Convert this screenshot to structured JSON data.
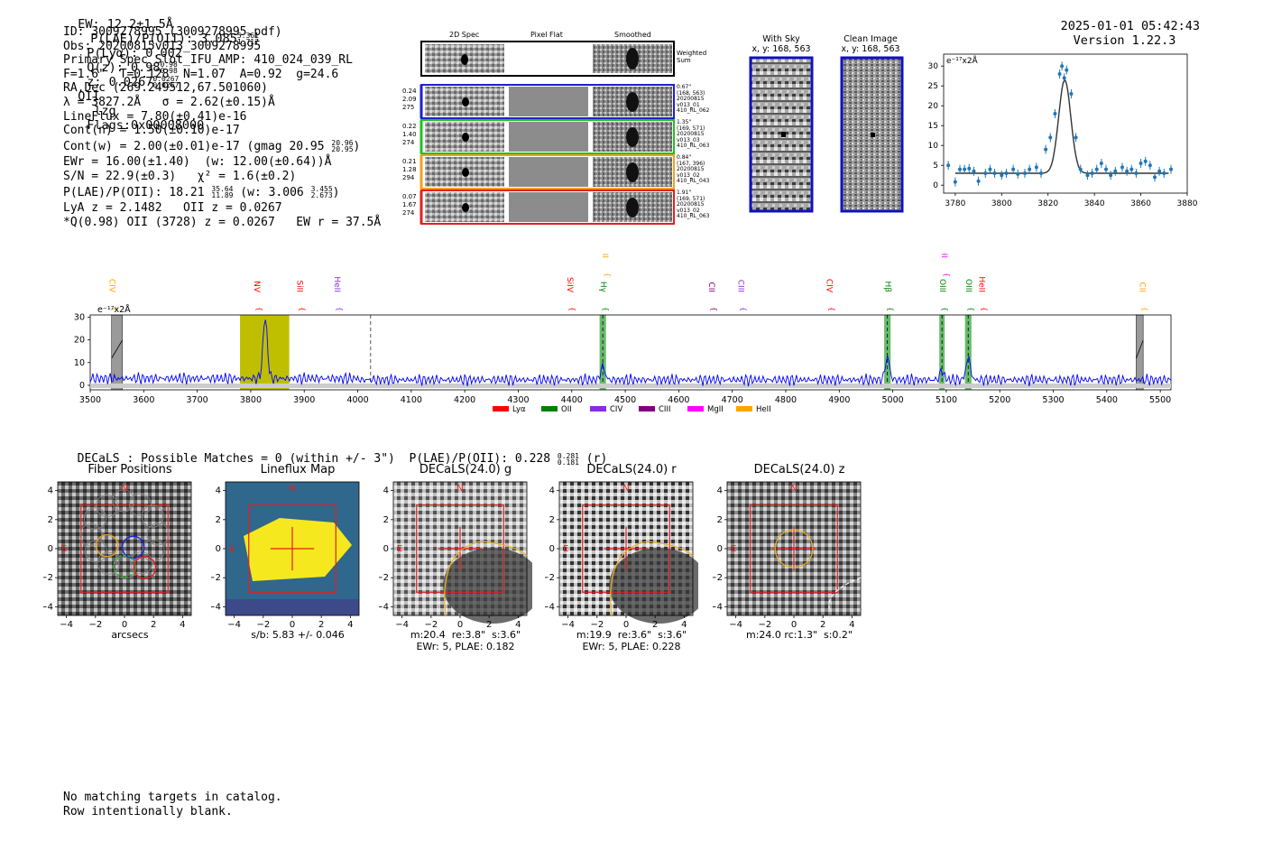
{
  "header": {
    "ew": "EW: 12.2±1.5Å",
    "plae_label": "P(LAE)/P(OII): 3.085",
    "plae_hi": "5.361",
    "plae_lo": "1.717",
    "plya": "P(Lyα): 0.002",
    "qz_label": "Q(z): 0.98",
    "qz_hi": "0.98",
    "qz_lo": "0.98",
    "z_label": "z: 0.0267",
    "z_hi": "0.0267",
    "z_lo": "0.0267",
    "z_tail": "OII",
    "lzg": "lzg",
    "flags": "Flags:0x00008000",
    "timestamp": "2025-01-01 05:42:43",
    "version": "Version 1.22.3"
  },
  "info": {
    "id": "ID: 3009278995 (3009278995.pdf)",
    "obs": "Obs: 20200815v013_3009278995",
    "primary": "Primary Spec_Slot_IFU_AMP: 410_024_039_RL",
    "f": "F=1.6\"  T=0.128  N=1.07  A=0.92  g=24.6",
    "radec": "RA,Dec (269.249512,67.501060)",
    "lambda": "λ = 3827.2Å   σ = 2.62(±0.15)Å",
    "lineflux": "LineFlux = 7.80(±0.41)e-16",
    "contn": "Cont(n) = 1.50(±0.10)e-17",
    "contw": "Cont(w) = 2.00(±0.01)e-17 (gmag 20.95",
    "contw_hi": "20.96",
    "contw_lo": "20.95",
    "contw_tail": ")",
    "ewr": "EWr = 16.00(±1.40)  (w: 12.00(±0.64))Å",
    "sn": "S/N = 22.9(±0.3)   χ² = 1.6(±0.2)",
    "plae": "P(LAE)/P(OII): 18.21",
    "plae_hi": "35.64",
    "plae_lo": "11.89",
    "plae_w": " (w: 3.006",
    "plae_w_hi": "3.455",
    "plae_w_lo": "2.673",
    "plae_tail": ")",
    "lya": "LyA z = 2.1482   OII z = 0.0267",
    "q": "*Q(0.98) OII (3728) z = 0.0267   EW r = 37.5Å"
  },
  "cutouts": {
    "col_2d": "2D Spec",
    "col_flat": "Pixel Flat",
    "col_smooth": "Smoothed",
    "weighted": "Weighted\nSum",
    "rows": [
      {
        "left": "0.24\n2.09\n275",
        "right": "0.67\"\n(168, 563)\n20200815\nv013_01\n410_RL_062",
        "color": "#1f1fd0"
      },
      {
        "left": "0.22\n1.40\n274",
        "right": "1.35\"\n(169, 571)\n20200815\nv013_03\n410_RL_063",
        "color": "#22c022"
      },
      {
        "left": "0.21\n1.28\n294",
        "right": "0.84\"\n(167, 396)\n20200815\nv013_02\n410_RL_043",
        "color": "#f0a020"
      },
      {
        "left": "0.07\n1.67\n274",
        "right": "1.91\"\n(169, 571)\n20200815\nv013_02\n410_RL_063",
        "color": "#e02020"
      }
    ]
  },
  "sky": {
    "with_title": "With Sky",
    "with_xy": "x, y: 168, 563",
    "clean_title": "Clean Image",
    "clean_xy": "x, y: 168, 563"
  },
  "zoom_chart": {
    "units": "e⁻¹⁷x2Å",
    "xticks": [
      "3780",
      "3800",
      "3820",
      "3840",
      "3860",
      "3880"
    ],
    "yticks": [
      "0",
      "5",
      "10",
      "15",
      "20",
      "25",
      "30"
    ]
  },
  "full_spectrum": {
    "units": "e⁻¹⁷x2Å",
    "xticks": [
      "3500",
      "3600",
      "3700",
      "3800",
      "3900",
      "4000",
      "4100",
      "4200",
      "4300",
      "4400",
      "4500",
      "4600",
      "4700",
      "4800",
      "4900",
      "5000",
      "5100",
      "5200",
      "5300",
      "5400",
      "5500"
    ],
    "yticks": [
      "0",
      "10",
      "20",
      "30"
    ],
    "legend": [
      {
        "label": "Lyα",
        "color": "#ff0000"
      },
      {
        "label": "OII",
        "color": "#008000"
      },
      {
        "label": "CIV",
        "color": "#8a2be2"
      },
      {
        "label": "CIII",
        "color": "#800080"
      },
      {
        "label": "MgII",
        "color": "#ff00ff"
      },
      {
        "label": "HeII",
        "color": "#ffa500"
      }
    ],
    "line_labels": [
      {
        "name": "CIV",
        "wave": 3540,
        "color": "#ffa500",
        "row": 1
      },
      {
        "name": "NV",
        "wave": 3810,
        "color": "#ff0000",
        "row": 1
      },
      {
        "name": "SiII",
        "wave": 3890,
        "color": "#ff0000",
        "row": 1
      },
      {
        "name": "HeII",
        "wave": 3960,
        "color": "#8a2be2",
        "row": 1
      },
      {
        "name": "SiIV",
        "wave": 4395,
        "color": "#ff0000",
        "row": 1
      },
      {
        "name": "CIII",
        "wave": 4458,
        "color": "#ffa500",
        "row": 0
      },
      {
        "name": "Hγ",
        "wave": 4458,
        "color": "#008000",
        "row": 1
      },
      {
        "name": "CII",
        "wave": 4660,
        "color": "#800080",
        "row": 1
      },
      {
        "name": "CIII",
        "wave": 4715,
        "color": "#8a2be2",
        "row": 1
      },
      {
        "name": "CIV",
        "wave": 4880,
        "color": "#ff0000",
        "row": 1
      },
      {
        "name": "Hβ",
        "wave": 4990,
        "color": "#008000",
        "row": 1
      },
      {
        "name": "OII",
        "wave": 5092,
        "color": "#ff00ff",
        "row": 0
      },
      {
        "name": "OIII",
        "wave": 5092,
        "color": "#008000",
        "row": 1
      },
      {
        "name": "OIII",
        "wave": 5141,
        "color": "#008000",
        "row": 1
      },
      {
        "name": "HeII",
        "wave": 5165,
        "color": "#ff0000",
        "row": 1
      },
      {
        "name": "CII",
        "wave": 5465,
        "color": "#ffa500",
        "row": 1
      }
    ]
  },
  "decals": {
    "summary": "DECaLS : Possible Matches = 0 (within +/- 3\")  P(LAE)/P(OII): 0.228",
    "summary_hi": "0.281",
    "summary_lo": "0.181",
    "summary_tail": " (r)",
    "north": "N",
    "east": "E",
    "ticks": [
      "−4",
      "−2",
      "0",
      "2",
      "4"
    ],
    "panels": [
      {
        "title": "Fiber Positions",
        "caption": "arcsecs"
      },
      {
        "title": "Lineflux Map",
        "caption": "s/b: 5.83 +/- 0.046"
      },
      {
        "title": "DECaLS(24.0) g",
        "caption": "m:20.4  re:3.8\"  s:3.6\"\nEWr: 5, PLAE: 0.182"
      },
      {
        "title": "DECaLS(24.0) r",
        "caption": "m:19.9  re:3.6\"  s:3.6\"\nEWr: 5, PLAE: 0.228"
      },
      {
        "title": "DECaLS(24.0) z",
        "caption": "m:24.0 rc:1.3\"  s:0.2\""
      }
    ]
  },
  "footer": {
    "line1": "No matching targets in catalog.",
    "line2": "Row intentionally blank."
  },
  "chart_data": [
    {
      "type": "scatter",
      "title": "",
      "units": "e⁻¹⁷x2Å",
      "xlim": [
        3775,
        3880
      ],
      "ylim": [
        -2,
        33
      ],
      "x": [
        3777,
        3780,
        3782,
        3784,
        3786,
        3788,
        3790,
        3793,
        3795,
        3797,
        3800,
        3802,
        3805,
        3807,
        3810,
        3812,
        3815,
        3817,
        3819,
        3821,
        3823,
        3825,
        3826,
        3827,
        3828,
        3830,
        3832,
        3834,
        3837,
        3839,
        3841,
        3843,
        3845,
        3847,
        3849,
        3852,
        3854,
        3856,
        3858,
        3860,
        3862,
        3864,
        3866,
        3868,
        3870,
        3873
      ],
      "y": [
        5.0,
        0.8,
        4.0,
        4.0,
        4.2,
        3.5,
        1.0,
        3.0,
        4.0,
        3.0,
        2.5,
        3.0,
        4.0,
        2.8,
        3.0,
        4.0,
        4.5,
        3.0,
        9.0,
        12.0,
        18.0,
        28.0,
        30.0,
        27.0,
        29.0,
        23.0,
        12.0,
        4.0,
        2.5,
        3.0,
        4.0,
        5.5,
        4.0,
        2.5,
        3.5,
        4.5,
        3.5,
        4.0,
        3.0,
        5.5,
        6.0,
        5.0,
        2.0,
        3.5,
        3.0,
        4.0
      ],
      "fit_center": 3827.2,
      "fit_sigma": 2.62,
      "fit_continuum": 3.0,
      "fit_peak": 26.5
    },
    {
      "type": "line",
      "title": "",
      "xlabel": "",
      "ylabel": "",
      "xlim": [
        3500,
        5520
      ],
      "ylim": [
        -2,
        31
      ],
      "series": [
        {
          "values_desc": "flux",
          "peaks": [
            {
              "wave": 3827,
              "height": 30.0
            },
            {
              "wave": 4458,
              "height": 9.0
            },
            {
              "wave": 4990,
              "height": 13.0
            },
            {
              "wave": 5092,
              "height": 7.0
            },
            {
              "wave": 5141,
              "height": 13.0
            }
          ],
          "baseline": 3.0
        }
      ],
      "highlight_bands": [
        {
          "from": 3780,
          "to": 3872,
          "color": "#bfbf00"
        }
      ],
      "emission_bands": [
        {
          "from": 4452,
          "to": 4464,
          "color": "#4caf50"
        },
        {
          "from": 4984,
          "to": 4996,
          "color": "#4caf50"
        },
        {
          "from": 5087,
          "to": 5097,
          "color": "#4caf50"
        },
        {
          "from": 5135,
          "to": 5147,
          "color": "#4caf50"
        }
      ],
      "masked_bands": [
        {
          "from": 3540,
          "to": 3560
        },
        {
          "from": 5455,
          "to": 5468
        }
      ],
      "dashed_line": 4024
    }
  ]
}
